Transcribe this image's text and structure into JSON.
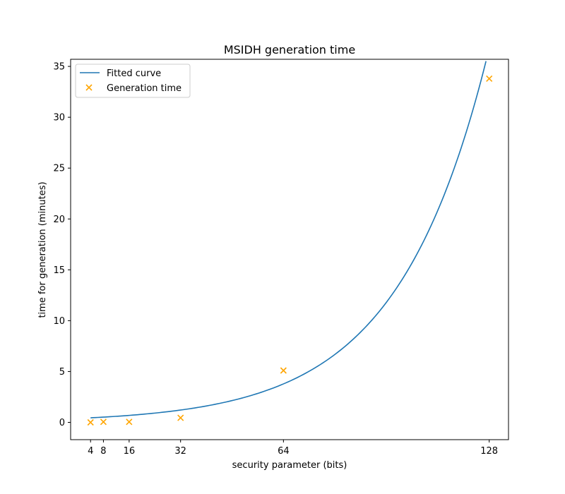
{
  "chart_data": {
    "type": "line",
    "title": "MSIDH generation time",
    "xlabel": "security parameter (bits)",
    "ylabel": "time for generation (minutes)",
    "xlim": [
      -2.2,
      134
    ],
    "ylim": [
      -1.7,
      35.7
    ],
    "x_ticks": [
      4,
      8,
      16,
      32,
      64,
      128
    ],
    "y_ticks": [
      0,
      5,
      10,
      15,
      20,
      25,
      30,
      35
    ],
    "grid": false,
    "legend_position": "top-left",
    "series": [
      {
        "name": "Fitted curve",
        "kind": "line",
        "color": "#1f77b4",
        "model": "exponential",
        "a": 0.3887,
        "b": 0.03555,
        "x_range": [
          4,
          127
        ]
      },
      {
        "name": "Generation time",
        "kind": "scatter",
        "marker": "x",
        "color": "#ffa500",
        "x": [
          4,
          8,
          16,
          32,
          64,
          128
        ],
        "y": [
          0.0,
          0.05,
          0.05,
          0.45,
          5.1,
          33.8
        ]
      }
    ]
  }
}
